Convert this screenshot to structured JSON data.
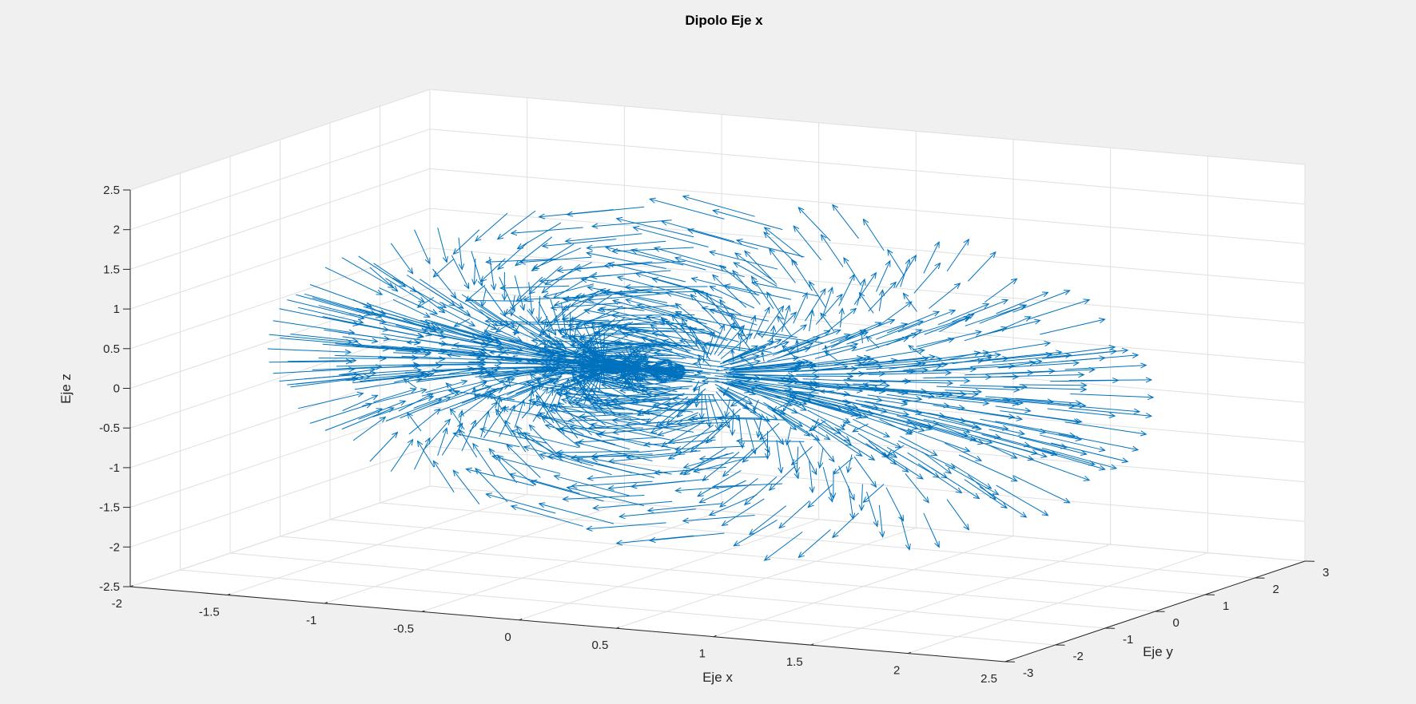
{
  "chart_data": {
    "type": "quiver3",
    "title": "Dipolo Eje x",
    "xlabel": "Eje x",
    "ylabel": "Eje y",
    "zlabel": "Eje z",
    "xlim": [
      -2,
      2.5
    ],
    "ylim": [
      -3,
      3
    ],
    "zlim": [
      -2.5,
      2.5
    ],
    "x_ticks": [
      "-2",
      "-1.5",
      "-1",
      "-0.5",
      "0",
      "0.5",
      "1",
      "1.5",
      "2",
      "2.5"
    ],
    "y_ticks": [
      "-3",
      "-2",
      "-1",
      "0",
      "1",
      "2",
      "3"
    ],
    "z_ticks": [
      "-2.5",
      "-2",
      "-1.5",
      "-1",
      "-0.5",
      "0",
      "0.5",
      "1",
      "1.5",
      "2",
      "2.5"
    ],
    "grid": true,
    "series_color": "#0072BD",
    "dipole_center": [
      0,
      0,
      0
    ],
    "field_extent_radius": 2
  },
  "colors": {
    "figure_background": "#f0f0f0",
    "axes_background": "#ffffff",
    "grid": "#dfdfdf",
    "axis_line": "#262626"
  }
}
